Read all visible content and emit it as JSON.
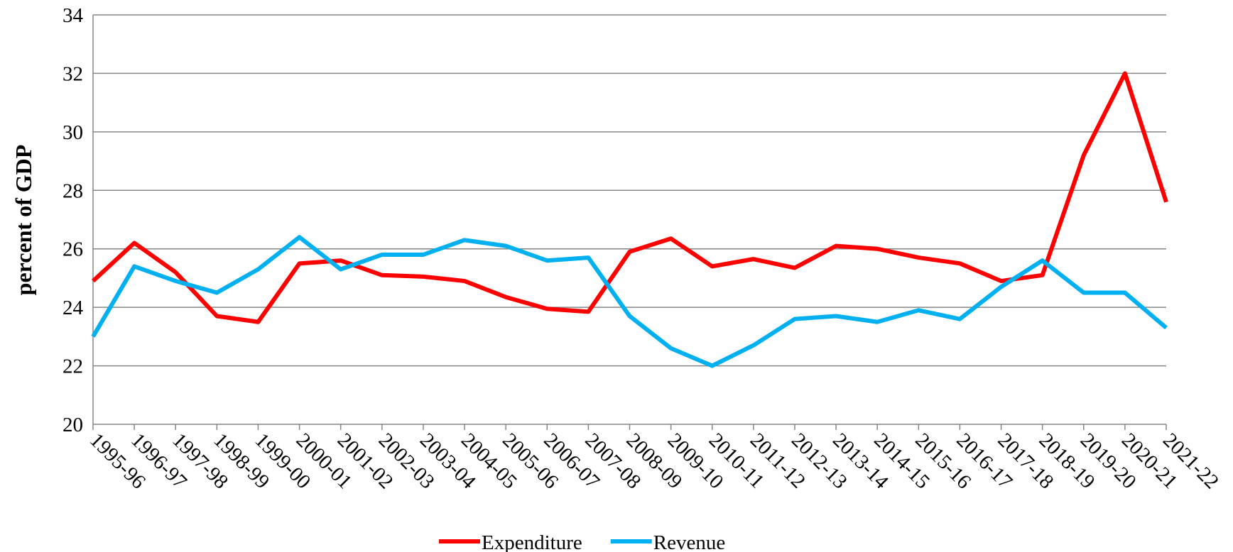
{
  "chart_data": {
    "type": "line",
    "ylabel": "percent of GDP",
    "categories": [
      "1995-96",
      "1996-97",
      "1997-98",
      "1998-99",
      "1999-00",
      "2000-01",
      "2001-02",
      "2002-03",
      "2003-04",
      "2004-05",
      "2005-06",
      "2006-07",
      "2007-08",
      "2008-09",
      "2009-10",
      "2010-11",
      "2011-12",
      "2012-13",
      "2013-14",
      "2014-15",
      "2015-16",
      "2016-17",
      "2017-18",
      "2018-19",
      "2019-20",
      "2020-21",
      "2021-22"
    ],
    "series": [
      {
        "name": "Expenditure",
        "color": "#ff0000",
        "values": [
          24.9,
          26.2,
          25.2,
          23.7,
          23.5,
          25.5,
          25.6,
          25.1,
          25.05,
          24.9,
          24.35,
          23.95,
          23.85,
          25.9,
          26.35,
          25.4,
          25.65,
          25.35,
          26.1,
          26.0,
          25.7,
          25.5,
          24.9,
          25.1,
          29.2,
          32.0,
          27.6
        ]
      },
      {
        "name": "Revenue",
        "color": "#00b0f0",
        "values": [
          23.0,
          25.4,
          24.9,
          24.5,
          25.3,
          26.4,
          25.3,
          25.8,
          25.8,
          26.3,
          26.1,
          25.6,
          25.7,
          23.7,
          22.6,
          22.0,
          22.7,
          23.6,
          23.7,
          23.5,
          23.9,
          23.6,
          24.7,
          25.6,
          24.5,
          24.5,
          23.3
        ]
      }
    ],
    "ylim": [
      20,
      34
    ],
    "yticks": [
      20,
      22,
      24,
      26,
      28,
      30,
      32,
      34
    ],
    "grid": true,
    "legend": "bottom"
  }
}
